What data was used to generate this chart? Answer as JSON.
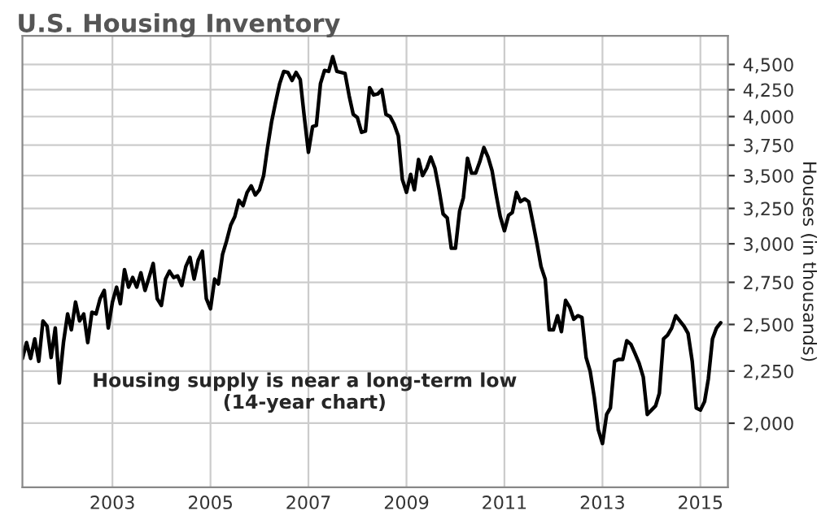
{
  "chart_data": {
    "type": "line",
    "title": "U.S. Housing Inventory",
    "ylabel": "Houses (in thousands)",
    "annotations": [
      "Housing supply is near a long-term low\n(14-year chart)"
    ],
    "x": [
      "2001-03",
      "2001-04",
      "2001-05",
      "2001-06",
      "2001-07",
      "2001-08",
      "2001-09",
      "2001-10",
      "2001-11",
      "2001-12",
      "2002-01",
      "2002-02",
      "2002-03",
      "2002-04",
      "2002-05",
      "2002-06",
      "2002-07",
      "2002-08",
      "2002-09",
      "2002-10",
      "2002-11",
      "2002-12",
      "2003-01",
      "2003-02",
      "2003-03",
      "2003-04",
      "2003-05",
      "2003-06",
      "2003-07",
      "2003-08",
      "2003-09",
      "2003-10",
      "2003-11",
      "2003-12",
      "2004-01",
      "2004-02",
      "2004-03",
      "2004-04",
      "2004-05",
      "2004-06",
      "2004-07",
      "2004-08",
      "2004-09",
      "2004-10",
      "2004-11",
      "2004-12",
      "2005-01",
      "2005-02",
      "2005-03",
      "2005-04",
      "2005-05",
      "2005-06",
      "2005-07",
      "2005-08",
      "2005-09",
      "2005-10",
      "2005-11",
      "2005-12",
      "2006-01",
      "2006-02",
      "2006-03",
      "2006-04",
      "2006-05",
      "2006-06",
      "2006-07",
      "2006-08",
      "2006-09",
      "2006-10",
      "2006-11",
      "2006-12",
      "2007-01",
      "2007-02",
      "2007-03",
      "2007-04",
      "2007-05",
      "2007-06",
      "2007-07",
      "2007-08",
      "2007-09",
      "2007-10",
      "2007-11",
      "2007-12",
      "2008-01",
      "2008-02",
      "2008-03",
      "2008-04",
      "2008-05",
      "2008-06",
      "2008-07",
      "2008-08",
      "2008-09",
      "2008-10",
      "2008-11",
      "2008-12",
      "2009-01",
      "2009-02",
      "2009-03",
      "2009-04",
      "2009-05",
      "2009-06",
      "2009-07",
      "2009-08",
      "2009-09",
      "2009-10",
      "2009-11",
      "2009-12",
      "2010-01",
      "2010-02",
      "2010-03",
      "2010-04",
      "2010-05",
      "2010-06",
      "2010-07",
      "2010-08",
      "2010-09",
      "2010-10",
      "2010-11",
      "2010-12",
      "2011-01",
      "2011-02",
      "2011-03",
      "2011-04",
      "2011-05",
      "2011-06",
      "2011-07",
      "2011-08",
      "2011-09",
      "2011-10",
      "2011-11",
      "2011-12",
      "2012-01",
      "2012-02",
      "2012-03",
      "2012-04",
      "2012-05",
      "2012-06",
      "2012-07",
      "2012-08",
      "2012-09",
      "2012-10",
      "2012-11",
      "2012-12",
      "2013-01",
      "2013-02",
      "2013-03",
      "2013-04",
      "2013-05",
      "2013-06",
      "2013-07",
      "2013-08",
      "2013-09",
      "2013-10",
      "2013-11",
      "2013-12",
      "2014-01",
      "2014-02",
      "2014-03",
      "2014-04",
      "2014-05",
      "2014-06",
      "2014-07",
      "2014-08",
      "2014-09",
      "2014-10",
      "2014-11",
      "2014-12",
      "2015-01",
      "2015-02",
      "2015-03",
      "2015-04",
      "2015-05",
      "2015-06"
    ],
    "series": [
      {
        "color": "#000000",
        "values": [
          2315,
          2400,
          2315,
          2420,
          2300,
          2520,
          2490,
          2320,
          2480,
          2190,
          2400,
          2560,
          2470,
          2630,
          2520,
          2560,
          2400,
          2570,
          2560,
          2650,
          2700,
          2480,
          2630,
          2720,
          2620,
          2830,
          2720,
          2780,
          2720,
          2810,
          2700,
          2780,
          2870,
          2650,
          2610,
          2770,
          2820,
          2780,
          2790,
          2730,
          2850,
          2910,
          2770,
          2890,
          2950,
          2650,
          2590,
          2770,
          2740,
          2930,
          3020,
          3130,
          3190,
          3310,
          3270,
          3370,
          3420,
          3350,
          3390,
          3500,
          3720,
          3950,
          4130,
          4310,
          4430,
          4420,
          4340,
          4420,
          4350,
          4000,
          3690,
          3910,
          3920,
          4310,
          4440,
          4430,
          4580,
          4430,
          4420,
          4410,
          4190,
          4020,
          3990,
          3860,
          3870,
          4270,
          4200,
          4210,
          4250,
          4020,
          4000,
          3930,
          3830,
          3470,
          3370,
          3510,
          3390,
          3630,
          3500,
          3560,
          3650,
          3560,
          3390,
          3210,
          3180,
          2970,
          2970,
          3230,
          3330,
          3640,
          3520,
          3520,
          3610,
          3730,
          3650,
          3540,
          3350,
          3190,
          3090,
          3200,
          3220,
          3370,
          3300,
          3320,
          3300,
          3150,
          3000,
          2850,
          2770,
          2470,
          2470,
          2550,
          2460,
          2640,
          2600,
          2530,
          2550,
          2540,
          2320,
          2250,
          2120,
          1970,
          1910,
          2040,
          2070,
          2300,
          2310,
          2310,
          2410,
          2390,
          2340,
          2290,
          2220,
          2040,
          2060,
          2080,
          2140,
          2420,
          2440,
          2480,
          2550,
          2520,
          2490,
          2450,
          2300,
          2070,
          2060,
          2100,
          2210,
          2420,
          2480,
          2510
        ]
      }
    ],
    "xlim": [
      "2001-03-01",
      "2015-07-25"
    ],
    "xticks": [
      "2003",
      "2005",
      "2007",
      "2009",
      "2011",
      "2013",
      "2015"
    ],
    "ylim": [
      1730,
      4800
    ],
    "yticks": [
      {
        "value": 2000,
        "label": "2,000"
      },
      {
        "value": 2250,
        "label": "2,250"
      },
      {
        "value": 2500,
        "label": "2,500"
      },
      {
        "value": 2750,
        "label": "2,750"
      },
      {
        "value": 3000,
        "label": "3,000"
      },
      {
        "value": 3250,
        "label": "3,250"
      },
      {
        "value": 3500,
        "label": "3,500"
      },
      {
        "value": 3750,
        "label": "3,750"
      },
      {
        "value": 4000,
        "label": "4,000"
      },
      {
        "value": 4250,
        "label": "4,250"
      },
      {
        "value": 4500,
        "label": "4,500"
      }
    ],
    "log": "y",
    "grid": true,
    "marker": "none",
    "line_style": "solid",
    "legend": false
  }
}
